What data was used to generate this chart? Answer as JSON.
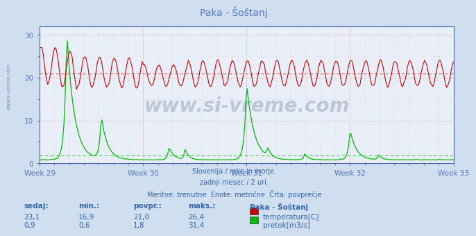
{
  "title": "Paka - Šoštanj",
  "bg_color": "#d0dff0",
  "plot_bg_color": "#e8eff8",
  "grid_color": "#c8d4e8",
  "x_weeks": [
    "Week 29",
    "Week 30",
    "Week 31",
    "Week 32",
    "Week 33"
  ],
  "x_week_positions": [
    0,
    84,
    168,
    252,
    336
  ],
  "n_points": 360,
  "temp_color": "#cc0000",
  "flow_color": "#00bb00",
  "avg_temp_color": "#dd4444",
  "avg_flow_color": "#44cc44",
  "avg_temp": 21.0,
  "avg_flow": 1.8,
  "temp_min": 16.9,
  "temp_max": 26.4,
  "temp_current": 23.1,
  "temp_avg": 21.0,
  "flow_min": 0.6,
  "flow_max": 31.4,
  "flow_current": 0.9,
  "flow_avg": 1.8,
  "subtitle1": "Slovenija / reke in morje.",
  "subtitle2": "zadnji mesec / 2 uri.",
  "subtitle3": "Meritve: trenutne  Enote: metrične  Črta: povprečje",
  "station": "Paka - Šoštanj",
  "label_temp": "temperatura[C]",
  "label_flow": "pretok[m3/s]",
  "watermark": "www.si-vreme.com",
  "axis_color": "#5577bb",
  "text_color": "#3366aa",
  "spine_color": "#4466aa",
  "yticks": [
    0,
    10,
    20,
    30
  ],
  "ylim": [
    0,
    32
  ],
  "xlim": [
    0,
    336
  ]
}
